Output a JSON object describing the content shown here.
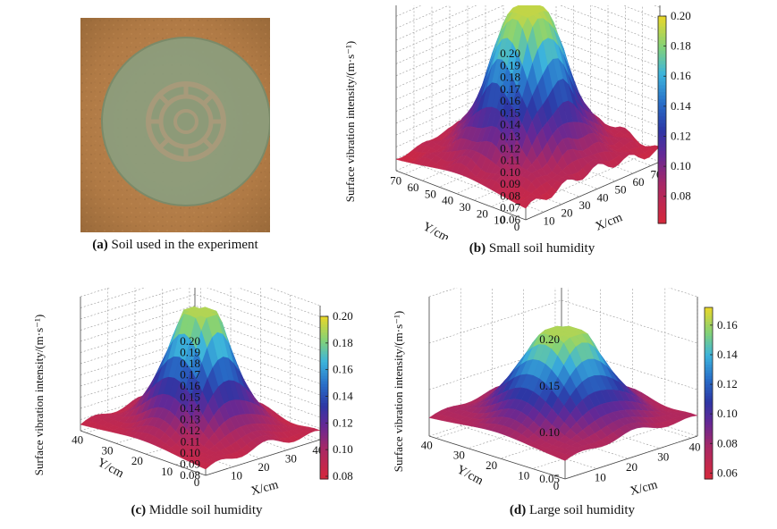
{
  "panels": {
    "a": {
      "letter": "(a)",
      "caption": "Soil used in the experiment"
    },
    "b": {
      "letter": "(b)",
      "caption": "Small soil humidity"
    },
    "c": {
      "letter": "(c)",
      "caption": "Middle soil humidity"
    },
    "d": {
      "letter": "(d)",
      "caption": "Large soil humidity"
    }
  },
  "chart_data": [
    {
      "id": "b",
      "type": "surface",
      "title": "Small soil humidity",
      "zlabel": "Surface vibration intensity/(m·s⁻¹)",
      "xlabel": "X/cm",
      "ylabel": "Y/cm",
      "x_ticks": [
        10,
        20,
        30,
        40,
        50,
        60,
        70
      ],
      "y_ticks": [
        0,
        10,
        20,
        30,
        40,
        50,
        60,
        70
      ],
      "z_ticks": [
        0.06,
        0.07,
        0.08,
        0.09,
        0.1,
        0.11,
        0.12,
        0.13,
        0.14,
        0.15,
        0.16,
        0.17,
        0.18,
        0.19,
        0.2
      ],
      "xlim": [
        0,
        75
      ],
      "ylim": [
        0,
        75
      ],
      "zlim": [
        0.06,
        0.2
      ],
      "colorbar_ticks": [
        0.08,
        0.1,
        0.12,
        0.14,
        0.16,
        0.18,
        0.2
      ],
      "colorbar_range": [
        0.062,
        0.2
      ],
      "surface": {
        "base": 0.066,
        "peak": 0.192,
        "center": [
          37,
          37
        ],
        "spread": 13
      }
    },
    {
      "id": "c",
      "type": "surface",
      "title": "Middle soil humidity",
      "zlabel": "Surface vibration intensity/(m·s⁻¹)",
      "xlabel": "X/cm",
      "ylabel": "Y/cm",
      "x_ticks": [
        10,
        20,
        30,
        40
      ],
      "y_ticks": [
        0,
        10,
        20,
        30,
        40
      ],
      "z_ticks": [
        0.08,
        0.09,
        0.1,
        0.11,
        0.12,
        0.13,
        0.14,
        0.15,
        0.16,
        0.17,
        0.18,
        0.19,
        0.2
      ],
      "xlim": [
        0,
        42
      ],
      "ylim": [
        0,
        42
      ],
      "zlim": [
        0.08,
        0.2
      ],
      "colorbar_ticks": [
        0.08,
        0.1,
        0.12,
        0.14,
        0.16,
        0.18,
        0.2
      ],
      "colorbar_range": [
        0.078,
        0.2
      ],
      "surface": {
        "base": 0.083,
        "peak": 0.19,
        "center": [
          21,
          21
        ],
        "spread": 7
      }
    },
    {
      "id": "d",
      "type": "surface",
      "title": "Large soil humidity",
      "zlabel": "Surface vibration intensity/(m·s⁻¹)",
      "xlabel": "X/cm",
      "ylabel": "Y/cm",
      "x_ticks": [
        10,
        20,
        30,
        40
      ],
      "y_ticks": [
        0,
        10,
        20,
        30,
        40
      ],
      "z_ticks": [
        0.05,
        0.1,
        0.15,
        0.2
      ],
      "xlim": [
        0,
        42
      ],
      "ylim": [
        0,
        42
      ],
      "zlim": [
        0.05,
        0.2
      ],
      "colorbar_ticks": [
        0.06,
        0.08,
        0.1,
        0.12,
        0.14,
        0.16
      ],
      "colorbar_range": [
        0.056,
        0.172
      ],
      "surface": {
        "base": 0.066,
        "peak": 0.162,
        "center": [
          21,
          21
        ],
        "spread": 8
      }
    }
  ],
  "colors": {
    "soil": "#b07a45",
    "ring": "#8fa98a",
    "grid": "#9a9a9a"
  }
}
